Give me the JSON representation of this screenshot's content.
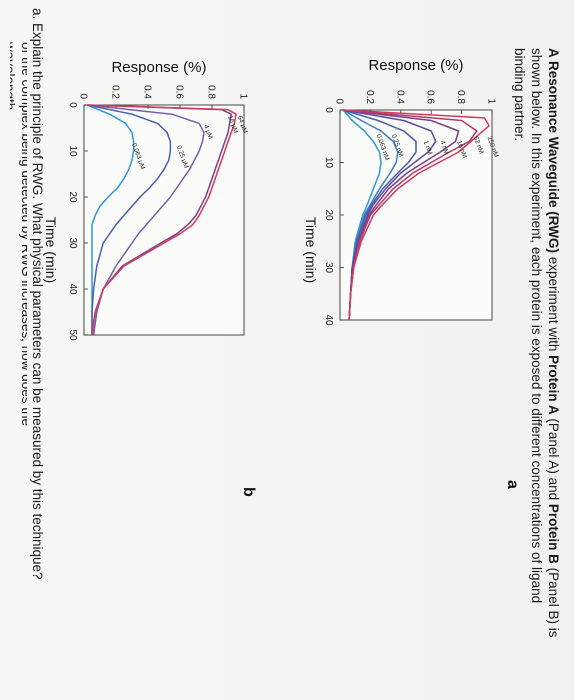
{
  "text": {
    "intro_bold_1": "A Resonance Waveguide (RWG)",
    "intro_mid_1": " experiment with ",
    "intro_bold_2": "Protein A",
    "intro_mid_2": " (Panel A) and ",
    "intro_bold_3": "Protein B",
    "intro_tail": " (Panel B) is shown below. In this experiment, each protein is exposed to different concentrations of ligand binding partner.",
    "question_a": "a. Explain the principle of RWG. What physical parameters can be measured by this technique?",
    "question_cutoff": "of the complex being detected by RWG increases, how does the wavelength"
  },
  "chart_data": [
    {
      "panel": "a",
      "type": "line",
      "xlabel": "Time (min)",
      "ylabel": "Response (%)",
      "xlim": [
        0,
        40
      ],
      "ylim": [
        0,
        1
      ],
      "xticks": [
        0,
        10,
        20,
        30,
        40
      ],
      "yticks": [
        0,
        0.2,
        0.4,
        0.6,
        0.8,
        1
      ],
      "series_labels": [
        "250 nM",
        "62 nM",
        "16 nM",
        "4 nM",
        "1 nM",
        "0.25 nM",
        "0.063 nM"
      ],
      "series": [
        {
          "name": "250 nM",
          "color": "#d23a5a",
          "x": [
            0,
            1.5,
            3,
            5,
            8,
            10,
            12,
            15,
            18,
            20,
            25,
            30,
            35,
            40
          ],
          "y": [
            0.02,
            0.95,
            0.98,
            0.9,
            0.78,
            0.65,
            0.52,
            0.38,
            0.28,
            0.22,
            0.14,
            0.09,
            0.07,
            0.06
          ]
        },
        {
          "name": "62 nM",
          "color": "#b23a6a",
          "x": [
            0,
            2,
            4,
            6,
            8,
            10,
            12,
            15,
            18,
            20,
            25,
            30,
            35,
            40
          ],
          "y": [
            0.02,
            0.8,
            0.9,
            0.85,
            0.72,
            0.6,
            0.48,
            0.35,
            0.26,
            0.2,
            0.13,
            0.09,
            0.07,
            0.06
          ]
        },
        {
          "name": "16 nM",
          "color": "#7a3f8a",
          "x": [
            0,
            2,
            4,
            6,
            8,
            10,
            12,
            15,
            18,
            20,
            25,
            30,
            35,
            40
          ],
          "y": [
            0.02,
            0.6,
            0.78,
            0.76,
            0.66,
            0.55,
            0.44,
            0.32,
            0.24,
            0.19,
            0.12,
            0.08,
            0.07,
            0.06
          ]
        },
        {
          "name": "4 nM",
          "color": "#5a4f9e",
          "x": [
            0,
            2,
            4,
            6,
            8,
            10,
            12,
            15,
            18,
            20,
            25,
            30,
            35,
            40
          ],
          "y": [
            0.02,
            0.42,
            0.6,
            0.63,
            0.58,
            0.49,
            0.4,
            0.3,
            0.22,
            0.18,
            0.12,
            0.08,
            0.07,
            0.06
          ]
        },
        {
          "name": "1 nM",
          "color": "#4a5fae",
          "x": [
            0,
            2,
            4,
            6,
            8,
            10,
            12,
            15,
            18,
            20,
            25,
            30,
            35,
            40
          ],
          "y": [
            0.02,
            0.25,
            0.42,
            0.5,
            0.5,
            0.45,
            0.38,
            0.28,
            0.21,
            0.17,
            0.11,
            0.08,
            0.07,
            0.06
          ]
        },
        {
          "name": "0.25 nM",
          "color": "#3f7fc0",
          "x": [
            0,
            2,
            4,
            6,
            8,
            10,
            12,
            15,
            18,
            20,
            25,
            30,
            35,
            40
          ],
          "y": [
            0.02,
            0.14,
            0.27,
            0.35,
            0.38,
            0.37,
            0.33,
            0.26,
            0.2,
            0.16,
            0.11,
            0.08,
            0.07,
            0.06
          ]
        },
        {
          "name": "0.063 nM",
          "color": "#2f9ad6",
          "x": [
            0,
            2,
            4,
            6,
            8,
            10,
            12,
            15,
            18,
            20,
            25,
            30,
            35,
            40
          ],
          "y": [
            0.02,
            0.08,
            0.16,
            0.22,
            0.26,
            0.27,
            0.26,
            0.22,
            0.18,
            0.15,
            0.1,
            0.08,
            0.07,
            0.06
          ]
        }
      ]
    },
    {
      "panel": "b",
      "type": "line",
      "xlabel": "Time (min)",
      "ylabel": "Response (%)",
      "xlim": [
        0,
        50
      ],
      "ylim": [
        0,
        1
      ],
      "xticks": [
        0,
        10,
        20,
        30,
        40,
        50
      ],
      "yticks": [
        0,
        0.2,
        0.4,
        0.6,
        0.8,
        1
      ],
      "series_labels": [
        "64 μM",
        "16 μM",
        "4 μM",
        "0.25 μM",
        "0.063 μM"
      ],
      "series": [
        {
          "name": "64 μM",
          "color": "#d23a5a",
          "x": [
            0,
            1,
            2,
            4,
            6,
            8,
            10,
            12,
            14,
            16,
            18,
            20,
            22,
            24,
            26,
            28,
            30,
            35,
            40,
            45,
            50
          ],
          "y": [
            0.02,
            0.9,
            0.95,
            0.94,
            0.92,
            0.9,
            0.88,
            0.86,
            0.84,
            0.82,
            0.8,
            0.78,
            0.75,
            0.72,
            0.68,
            0.6,
            0.5,
            0.25,
            0.12,
            0.07,
            0.05
          ]
        },
        {
          "name": "16 μM",
          "color": "#7a3f8a",
          "x": [
            0,
            1,
            2,
            4,
            6,
            8,
            10,
            12,
            14,
            16,
            18,
            20,
            22,
            24,
            26,
            28,
            30,
            35,
            40,
            45,
            50
          ],
          "y": [
            0.02,
            0.86,
            0.92,
            0.91,
            0.9,
            0.88,
            0.86,
            0.84,
            0.82,
            0.8,
            0.78,
            0.76,
            0.73,
            0.7,
            0.65,
            0.58,
            0.48,
            0.24,
            0.12,
            0.07,
            0.05
          ]
        },
        {
          "name": "4 μM",
          "color": "#7a5fae",
          "x": [
            0,
            2,
            4,
            6,
            8,
            10,
            12,
            14,
            16,
            18,
            20,
            22,
            24,
            26,
            28,
            30,
            35,
            40,
            45,
            50
          ],
          "y": [
            0.02,
            0.55,
            0.72,
            0.75,
            0.74,
            0.72,
            0.69,
            0.66,
            0.62,
            0.58,
            0.54,
            0.49,
            0.44,
            0.39,
            0.34,
            0.3,
            0.2,
            0.12,
            0.08,
            0.06
          ]
        },
        {
          "name": "0.25 μM",
          "color": "#4a5fae",
          "x": [
            0,
            2,
            4,
            6,
            8,
            10,
            12,
            14,
            16,
            18,
            20,
            22,
            24,
            26,
            28,
            30,
            35,
            40,
            45,
            50
          ],
          "y": [
            0.02,
            0.3,
            0.46,
            0.52,
            0.54,
            0.54,
            0.53,
            0.5,
            0.46,
            0.41,
            0.35,
            0.3,
            0.25,
            0.2,
            0.16,
            0.12,
            0.08,
            0.06,
            0.05,
            0.05
          ]
        },
        {
          "name": "0.063 μM",
          "color": "#2f9ad6",
          "x": [
            0,
            2,
            4,
            6,
            8,
            10,
            12,
            14,
            16,
            18,
            20,
            22,
            24,
            26,
            28,
            30,
            35,
            40,
            45,
            50
          ],
          "y": [
            0.02,
            0.16,
            0.26,
            0.3,
            0.31,
            0.31,
            0.3,
            0.28,
            0.25,
            0.21,
            0.15,
            0.1,
            0.07,
            0.05,
            0.05,
            0.05,
            0.05,
            0.05,
            0.05,
            0.05
          ]
        }
      ]
    }
  ]
}
